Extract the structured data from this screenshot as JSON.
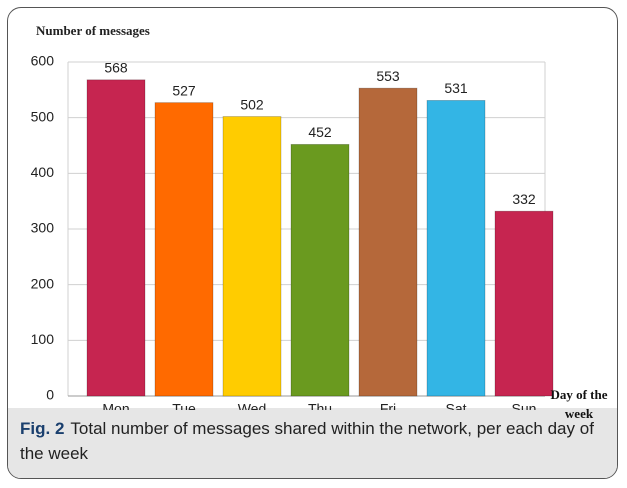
{
  "chart_data": {
    "type": "bar",
    "ylabel": "Number of messages",
    "xlabel": "Day of the week",
    "categories": [
      "Mon",
      "Tue",
      "Wed",
      "Thu",
      "Fri",
      "Sat",
      "Sun"
    ],
    "values": [
      568,
      527,
      502,
      452,
      553,
      531,
      332
    ],
    "colors": [
      "#c62550",
      "#ff6a00",
      "#ffcc00",
      "#6a9a1f",
      "#b5683a",
      "#33b5e5",
      "#c62550"
    ],
    "ylim": [
      0,
      600
    ],
    "yticks": [
      0,
      100,
      200,
      300,
      400,
      500,
      600
    ],
    "grid": true
  },
  "caption": {
    "label": "Fig. 2",
    "text": "Total number of messages shared within the network, per each day of the week"
  }
}
